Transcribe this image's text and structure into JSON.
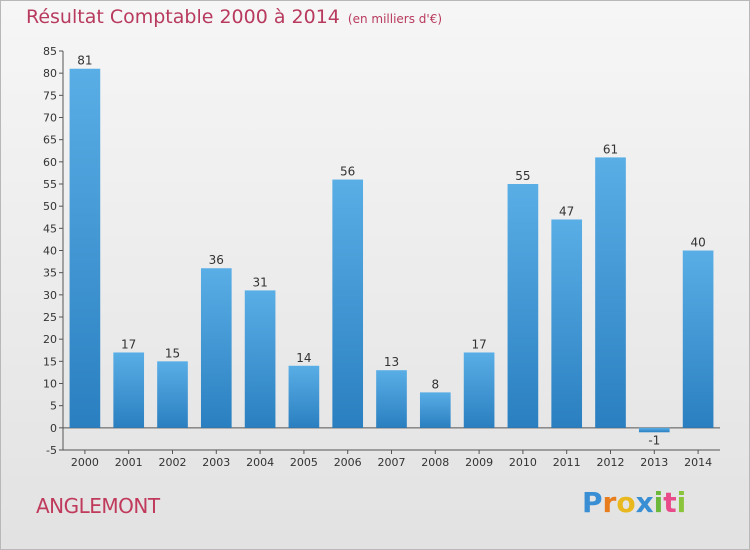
{
  "header": {
    "title": "Résultat Comptable 2000 à 2014",
    "unit": "(en milliers d'€)"
  },
  "footer": {
    "commune": "ANGLEMONT",
    "brand": {
      "letters": [
        "P",
        "r",
        "o",
        "x",
        "i",
        "t",
        "i"
      ],
      "colors": [
        "#3a8fd4",
        "#e87d1e",
        "#e8b81e",
        "#3a8fd4",
        "#6bb83a",
        "#e84a8a",
        "#8ac43a"
      ]
    }
  },
  "chart_data": {
    "type": "bar",
    "title": "Résultat Comptable 2000 à 2014",
    "subtitle": "(en milliers d'€)",
    "categories": [
      "2000",
      "2001",
      "2002",
      "2003",
      "2004",
      "2005",
      "2006",
      "2007",
      "2008",
      "2009",
      "2010",
      "2011",
      "2012",
      "2013",
      "2014"
    ],
    "values": [
      81,
      17,
      15,
      36,
      31,
      14,
      56,
      13,
      8,
      17,
      55,
      47,
      61,
      -1,
      40
    ],
    "ylim": [
      -5,
      85
    ],
    "yticks": [
      -5,
      0,
      5,
      10,
      15,
      20,
      25,
      30,
      35,
      40,
      45,
      50,
      55,
      60,
      65,
      70,
      75,
      80,
      85
    ],
    "grid": false,
    "bar_color": "#3f9ad8"
  }
}
